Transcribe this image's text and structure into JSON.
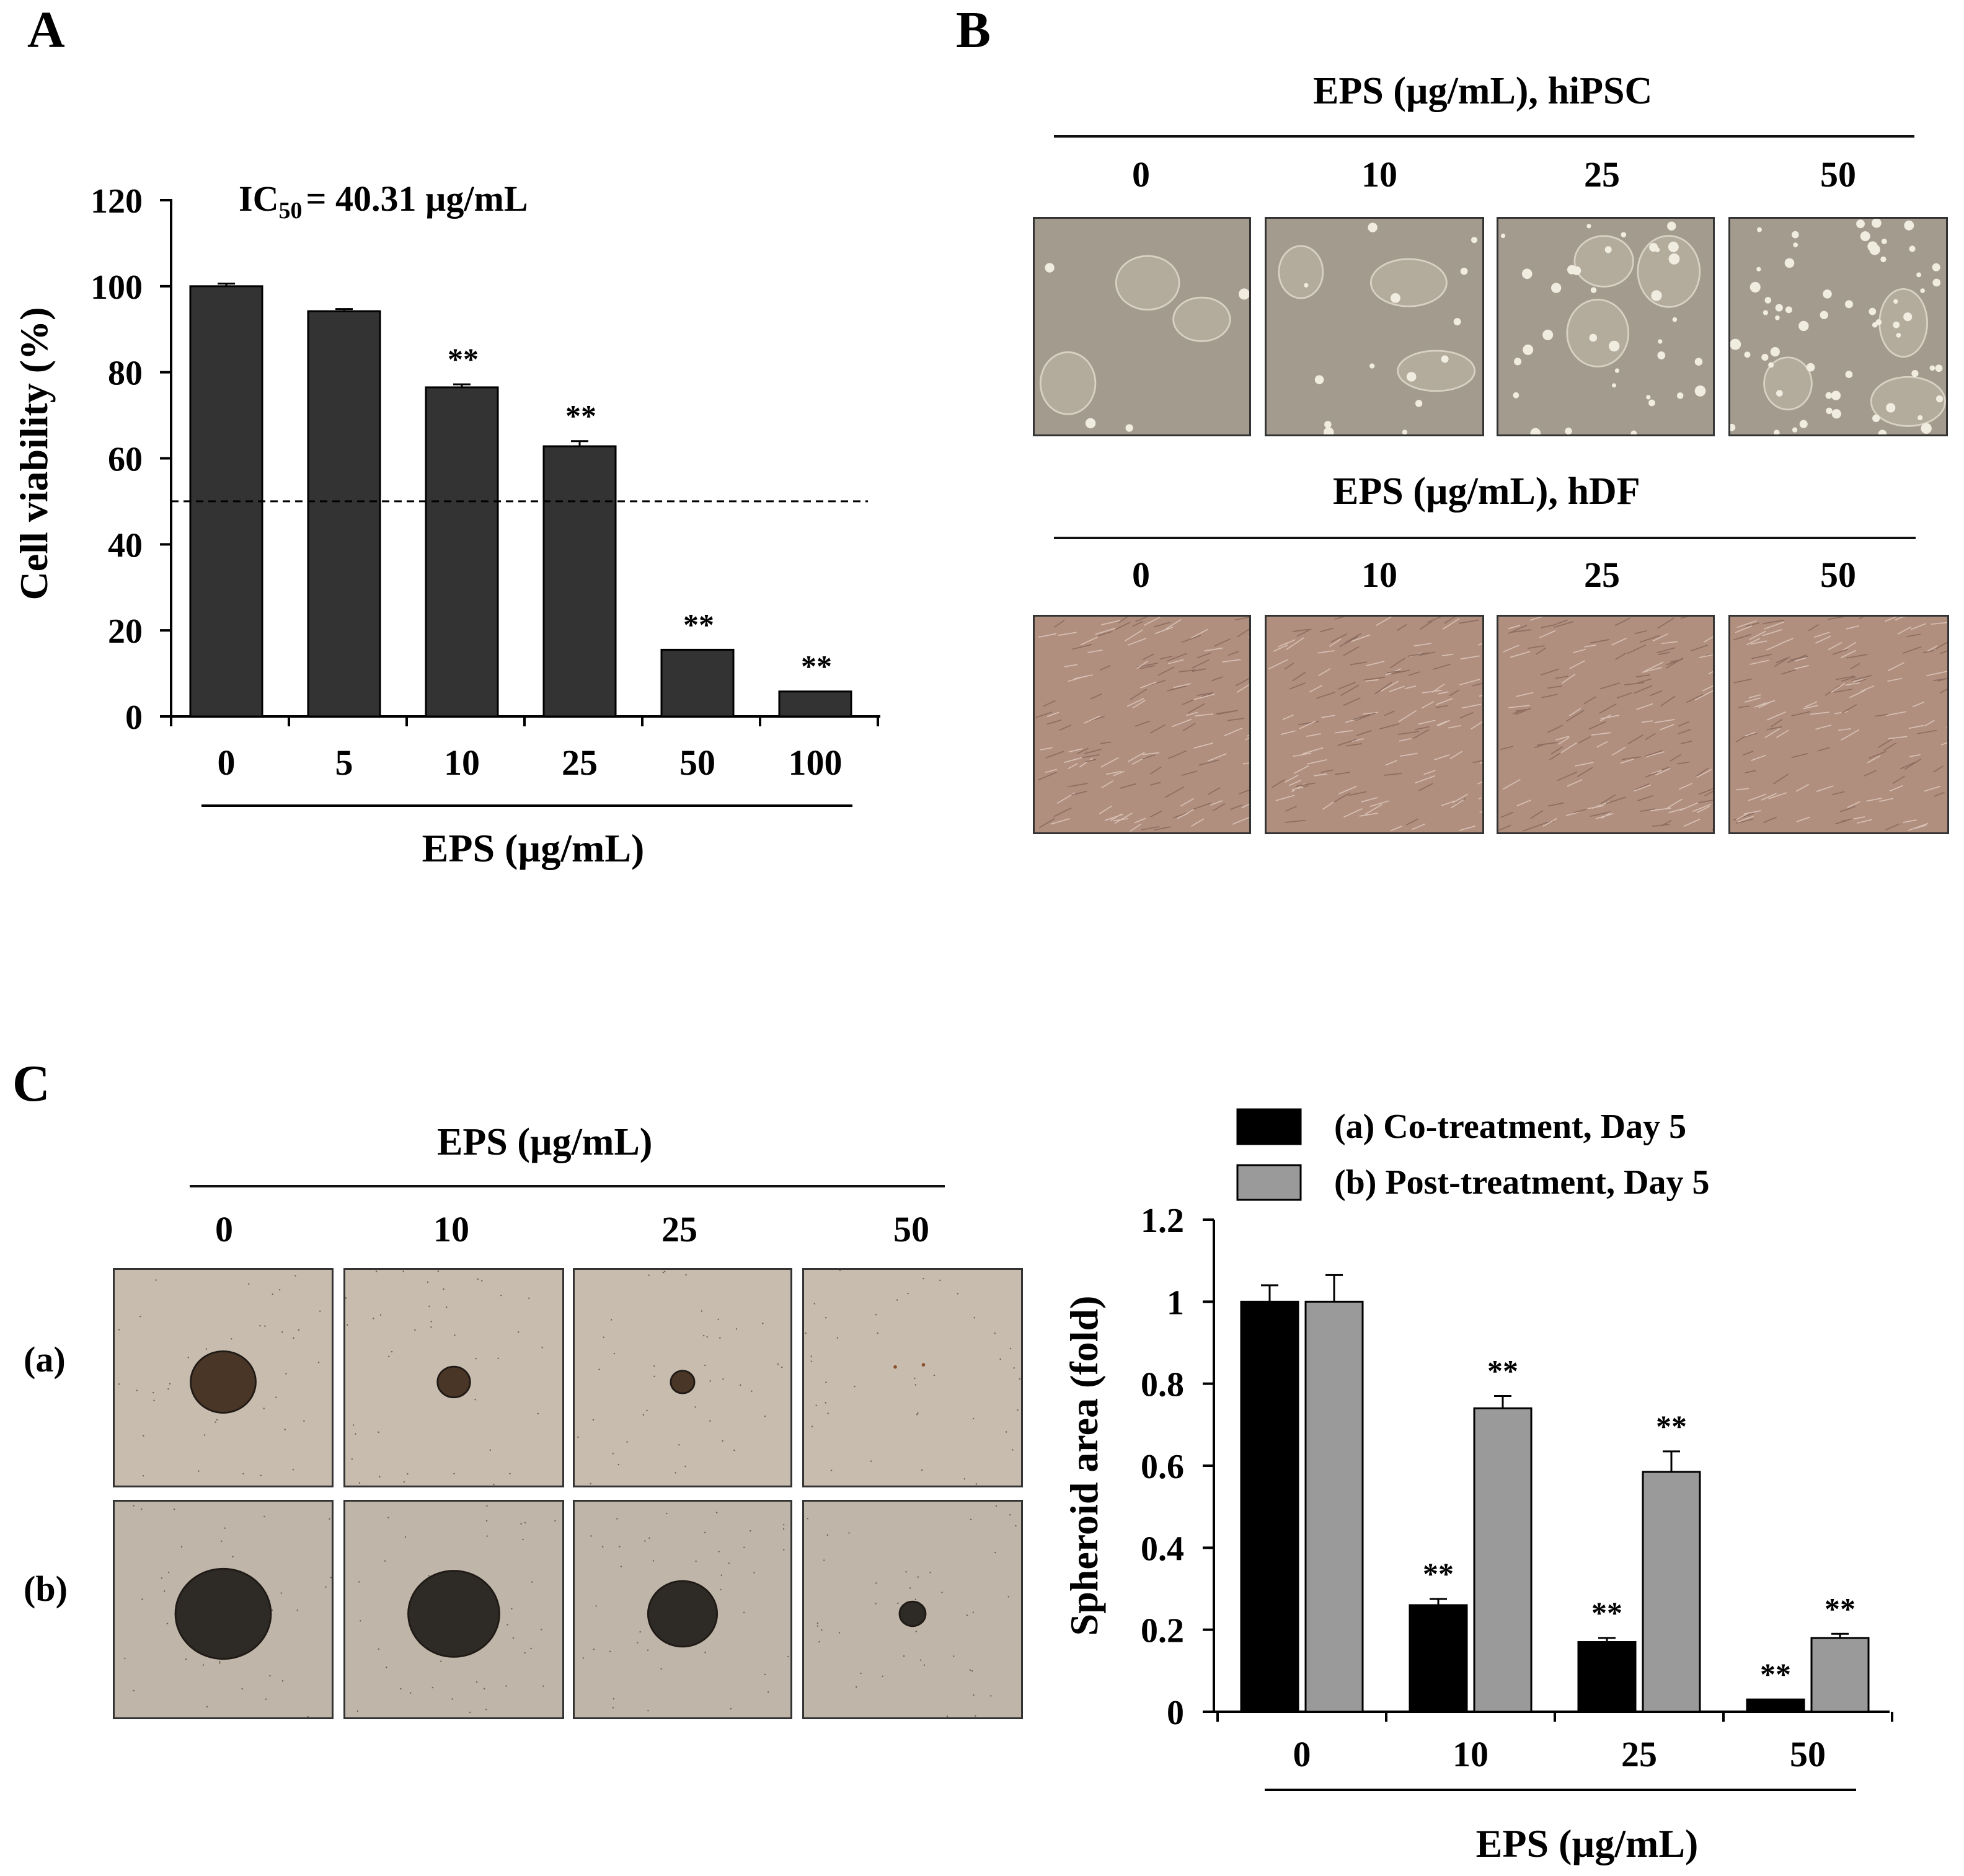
{
  "panels": {
    "a_letter": "A",
    "b_letter": "B",
    "c_letter": "C"
  },
  "panel_b": {
    "hipsc_header": "EPS (µg/mL), hiPSC",
    "hdf_header": "EPS (µg/mL), hDF",
    "concentrations": [
      "0",
      "10",
      "25",
      "50"
    ]
  },
  "panel_c_images": {
    "header": "EPS (µg/mL)",
    "concentrations": [
      "0",
      "10",
      "25",
      "50"
    ],
    "row_a_label": "(a)",
    "row_b_label": "(b)"
  },
  "colors": {
    "bar_dark": "#333333",
    "bar_black": "#000000",
    "bar_gray": "#9a9a9a",
    "hipsc_bg": "#a39c8e",
    "hdf_bg": "#b08f7f",
    "spheroid_bg": "#c7bcad"
  },
  "chart_data": [
    {
      "type": "bar",
      "annotation": "IC50 = 40.31 µg/mL",
      "annotation_main": "IC",
      "annotation_sub": "50",
      "annotation_rest": "= 40.31 µg/mL",
      "categories": [
        "0",
        "5",
        "10",
        "25",
        "50",
        "100"
      ],
      "values": [
        100,
        94.2,
        76.5,
        62.8,
        15.5,
        5.8
      ],
      "errors": [
        0.6,
        0.5,
        0.7,
        1.2,
        0,
        0
      ],
      "significance": [
        "",
        "",
        "**",
        "**",
        "**",
        "**"
      ],
      "reference_line": 50,
      "ylabel": "Cell viability (%)",
      "xlabel": "EPS (µg/mL)",
      "ylim": [
        0,
        120
      ],
      "yticks": [
        0,
        20,
        40,
        60,
        80,
        100,
        120
      ]
    },
    {
      "type": "bar",
      "categories": [
        "0",
        "10",
        "25",
        "50"
      ],
      "series": [
        {
          "name": "(a) Co-treatment, Day 5",
          "values": [
            1.0,
            0.26,
            0.17,
            0.03
          ],
          "errors": [
            0.04,
            0.015,
            0.01,
            0
          ],
          "significance": [
            "",
            "**",
            "**",
            "**"
          ]
        },
        {
          "name": "(b) Post-treatment, Day 5",
          "values": [
            1.0,
            0.74,
            0.585,
            0.18
          ],
          "errors": [
            0.065,
            0.03,
            0.05,
            0.01
          ],
          "significance": [
            "",
            "**",
            "**",
            "**"
          ]
        }
      ],
      "ylabel": "Spheroid area (fold)",
      "xlabel": "EPS (µg/mL)",
      "ylim": [
        0,
        1.2
      ],
      "yticks": [
        "0",
        "0.2",
        "0.4",
        "0.6",
        "0.8",
        "1",
        "1.2"
      ]
    }
  ]
}
